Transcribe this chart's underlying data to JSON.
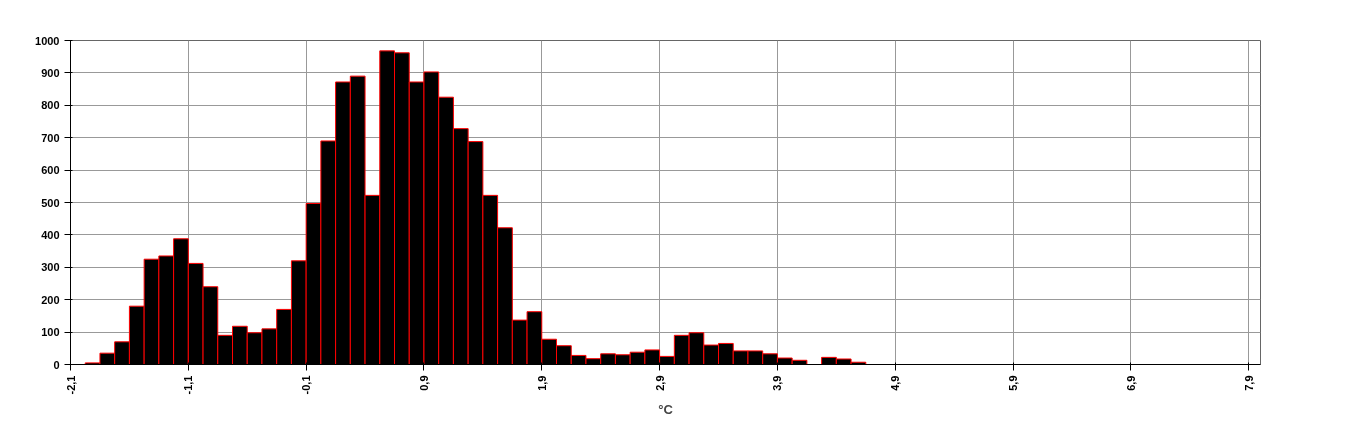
{
  "chart_data": {
    "type": "histogram",
    "xlabel": "°C",
    "bins": [
      -2.1,
      -1.975,
      -1.85,
      -1.725,
      -1.6,
      -1.475,
      -1.35,
      -1.225,
      -1.1,
      -0.975,
      -0.85,
      -0.725,
      -0.6,
      -0.475,
      -0.35,
      -0.225,
      -0.1,
      0.025,
      0.15,
      0.275,
      0.4,
      0.525,
      0.65,
      0.775,
      0.9,
      1.025,
      1.15,
      1.275,
      1.4,
      1.525,
      1.65,
      1.775,
      1.9,
      2.025,
      2.15,
      2.275,
      2.4,
      2.525,
      2.65,
      2.775,
      2.9,
      3.025,
      3.15,
      3.275,
      3.4,
      3.525,
      3.65,
      3.775,
      3.9,
      4.025,
      4.15,
      4.275,
      4.4,
      4.525,
      4.65
    ],
    "values": [
      null,
      5,
      35,
      70,
      180,
      325,
      335,
      388,
      312,
      240,
      90,
      118,
      98,
      110,
      170,
      320,
      497,
      690,
      872,
      890,
      522,
      968,
      962,
      872,
      903,
      825,
      728,
      688,
      522,
      422,
      137,
      163,
      78,
      58,
      28,
      18,
      33,
      30,
      38,
      45,
      25,
      90,
      98,
      60,
      65,
      42,
      42,
      33,
      20,
      13,
      null,
      22,
      17,
      7
    ],
    "color": "#000000",
    "xlim": [
      -2.1,
      8.0
    ],
    "xticks": [
      {
        "value": -2.1,
        "label": "-2,1"
      },
      {
        "value": -1.1,
        "label": "-1,1"
      },
      {
        "value": -0.1,
        "label": "-0,1"
      },
      {
        "value": 0.9,
        "label": "0,9"
      },
      {
        "value": 1.9,
        "label": "1,9"
      },
      {
        "value": 2.9,
        "label": "2,9"
      },
      {
        "value": 3.9,
        "label": "3,9"
      },
      {
        "value": 4.9,
        "label": "4,9"
      },
      {
        "value": 5.9,
        "label": "5,9"
      },
      {
        "value": 6.9,
        "label": "6,9"
      },
      {
        "value": 7.9,
        "label": "7,9"
      }
    ],
    "ylim": [
      0,
      1000
    ],
    "yticks": [
      0,
      100,
      200,
      300,
      400,
      500,
      600,
      700,
      800,
      900,
      1000
    ],
    "grid": true
  }
}
